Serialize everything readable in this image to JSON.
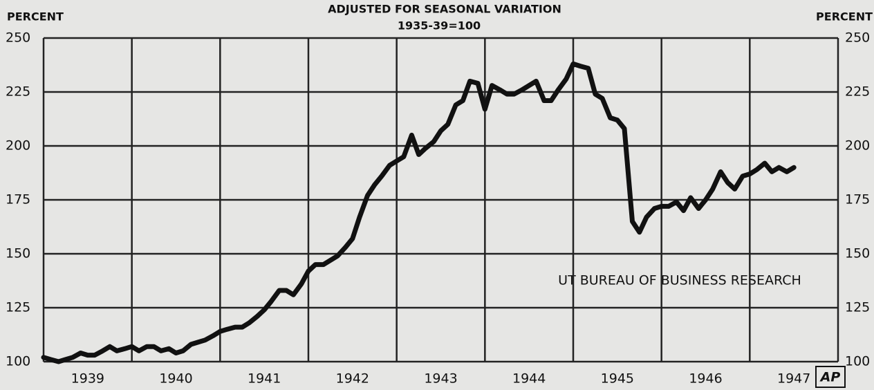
{
  "chart_data": {
    "type": "line",
    "subtitle": "ADJUSTED FOR SEASONAL VARIATION",
    "subtitle2": "1935-39=100",
    "ylabel": "PERCENT",
    "annotation": "UT BUREAU OF BUSINESS RESEARCH",
    "logo": "AP",
    "xlim": [
      1939,
      1948
    ],
    "xticks": [
      {
        "value": 1939.5,
        "label": "1939"
      },
      {
        "value": 1940.5,
        "label": "1940"
      },
      {
        "value": 1941.5,
        "label": "1941"
      },
      {
        "value": 1942.5,
        "label": "1942"
      },
      {
        "value": 1943.5,
        "label": "1943"
      },
      {
        "value": 1944.5,
        "label": "1944"
      },
      {
        "value": 1945.5,
        "label": "1945"
      },
      {
        "value": 1946.5,
        "label": "1946"
      },
      {
        "value": 1947.5,
        "label": "1947"
      }
    ],
    "xgrid": [
      1939,
      1940,
      1941,
      1942,
      1943,
      1944,
      1945,
      1946,
      1947,
      1948
    ],
    "ylim": [
      100,
      250
    ],
    "yticks": [
      100,
      125,
      150,
      175,
      200,
      225,
      250
    ],
    "grid": true,
    "x": [
      1939.0,
      1939.08,
      1939.17,
      1939.25,
      1939.33,
      1939.42,
      1939.5,
      1939.58,
      1939.67,
      1939.75,
      1939.83,
      1939.92,
      1940.0,
      1940.08,
      1940.17,
      1940.25,
      1940.33,
      1940.42,
      1940.5,
      1940.58,
      1940.67,
      1940.75,
      1940.83,
      1940.92,
      1941.0,
      1941.08,
      1941.17,
      1941.25,
      1941.33,
      1941.42,
      1941.5,
      1941.58,
      1941.67,
      1941.75,
      1941.83,
      1941.92,
      1942.0,
      1942.08,
      1942.17,
      1942.25,
      1942.33,
      1942.42,
      1942.5,
      1942.58,
      1942.67,
      1942.75,
      1942.83,
      1942.92,
      1943.0,
      1943.08,
      1943.17,
      1943.25,
      1943.33,
      1943.42,
      1943.5,
      1943.58,
      1943.67,
      1943.75,
      1943.83,
      1943.92,
      1944.0,
      1944.08,
      1944.17,
      1944.25,
      1944.33,
      1944.42,
      1944.5,
      1944.58,
      1944.67,
      1944.75,
      1944.83,
      1944.92,
      1945.0,
      1945.08,
      1945.17,
      1945.25,
      1945.33,
      1945.42,
      1945.5,
      1945.58,
      1945.67,
      1945.75,
      1945.83,
      1945.92,
      1946.0,
      1946.08,
      1946.17,
      1946.25,
      1946.33,
      1946.42,
      1946.5,
      1946.58,
      1946.67,
      1946.75,
      1946.83,
      1946.92,
      1947.0,
      1947.08,
      1947.17,
      1947.25,
      1947.33,
      1947.42,
      1947.5
    ],
    "series": [
      {
        "color": "#111111",
        "values": [
          102,
          101,
          100,
          101,
          102,
          104,
          103,
          103,
          105,
          107,
          105,
          106,
          107,
          105,
          107,
          107,
          105,
          106,
          104,
          105,
          108,
          109,
          110,
          112,
          114,
          115,
          116,
          116,
          118,
          121,
          124,
          128,
          133,
          133,
          131,
          136,
          142,
          145,
          145,
          147,
          149,
          153,
          157,
          167,
          177,
          182,
          186,
          191,
          193,
          195,
          205,
          196,
          199,
          202,
          207,
          210,
          219,
          221,
          230,
          229,
          217,
          228,
          226,
          224,
          224,
          226,
          228,
          230,
          221,
          221,
          226,
          231,
          238,
          237,
          236,
          224,
          222,
          213,
          212,
          208,
          165,
          160,
          167,
          171,
          172,
          172,
          174,
          170,
          176,
          171,
          175,
          180,
          188,
          183,
          180,
          186,
          187,
          189,
          192,
          188,
          190,
          188,
          190
        ]
      }
    ]
  }
}
